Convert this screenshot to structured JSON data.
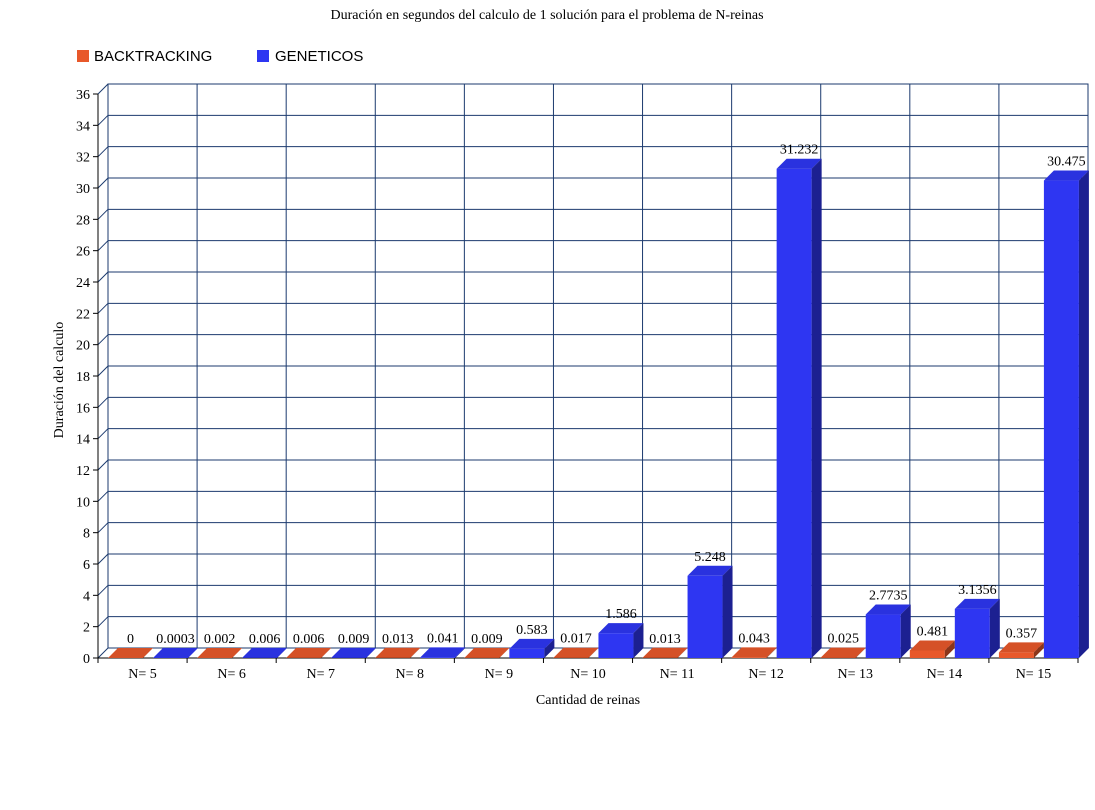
{
  "chart_data": {
    "type": "bar",
    "title": "Duración en segundos del calculo de 1 solución para el problema de N-reinas",
    "xlabel": "Cantidad de reinas",
    "ylabel": "Duración del calculo",
    "categories": [
      "N= 5",
      "N= 6",
      "N= 7",
      "N= 8",
      "N= 9",
      "N= 10",
      "N= 11",
      "N= 12",
      "N= 13",
      "N= 14",
      "N= 15"
    ],
    "series": [
      {
        "name": "BACKTRACKING",
        "color": "#e8582a",
        "values": [
          0,
          0.002,
          0.006,
          0.013,
          0.009,
          0.017,
          0.013,
          0.043,
          0.025,
          0.481,
          0.357
        ],
        "labels": [
          "0",
          "0.002",
          "0.006",
          "0.013",
          "0.009",
          "0.017",
          "0.013",
          "0.043",
          "0.025",
          "0.481",
          "0.357"
        ]
      },
      {
        "name": "GENETICOS",
        "color": "#2e36f2",
        "values": [
          0.0003,
          0.006,
          0.009,
          0.041,
          0.583,
          1.586,
          5.248,
          31.232,
          2.7735,
          3.1356,
          30.475
        ],
        "labels": [
          "0.0003",
          "0.006",
          "0.009",
          "0.041",
          "0.583",
          "1.586",
          "5.248",
          "31.232",
          "2.7735",
          "3.1356",
          "30.475"
        ]
      }
    ],
    "ylim": [
      0,
      36
    ],
    "yticks": [
      0,
      2,
      4,
      6,
      8,
      10,
      12,
      14,
      16,
      18,
      20,
      22,
      24,
      26,
      28,
      30,
      32,
      34,
      36
    ],
    "grid": true,
    "grid_color": "#1b3a6e",
    "legend": "top-left"
  }
}
